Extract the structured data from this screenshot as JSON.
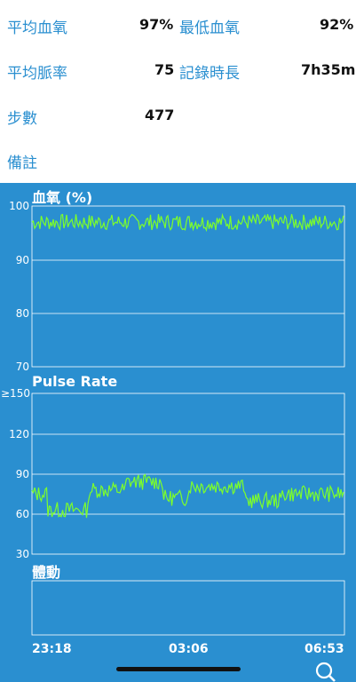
{
  "summary": {
    "avg_spo2_label": "平均血氧",
    "avg_spo2_value": "97%",
    "min_spo2_label": "最低血氧",
    "min_spo2_value": "92%",
    "avg_pulse_label": "平均脈率",
    "avg_pulse_value": "75",
    "duration_label": "記錄時長",
    "duration_value": "7h35m",
    "steps_label": "步數",
    "steps_value": "477",
    "notes_label": "備註"
  },
  "charts": {
    "spo2": {
      "title": "血氧 (%)",
      "ticks": [
        "100",
        "90",
        "80",
        "70"
      ]
    },
    "pulse": {
      "title": "Pulse Rate",
      "ticks": [
        "≥150",
        "120",
        "90",
        "60",
        "30"
      ]
    },
    "motion": {
      "title": "體動"
    },
    "x_ticks": [
      "23:18",
      "03:06",
      "06:53"
    ]
  },
  "colors": {
    "panel_bg": "#2a8fd0",
    "line": "#7dff2a",
    "label": "#2a8fd0"
  },
  "icons": {
    "search": "search-icon"
  },
  "chart_data": [
    {
      "type": "line",
      "title": "血氧 (%)",
      "ylim": [
        70,
        100
      ],
      "x": [
        "23:18",
        "03:06",
        "06:53"
      ],
      "series": [
        {
          "values": [
            97,
            97,
            97
          ]
        }
      ]
    },
    {
      "type": "line",
      "title": "Pulse Rate",
      "ylim": [
        30,
        150
      ],
      "x": [
        "23:18",
        "03:06",
        "06:53"
      ],
      "series": [
        {
          "values": [
            75,
            82,
            75
          ]
        }
      ]
    }
  ]
}
